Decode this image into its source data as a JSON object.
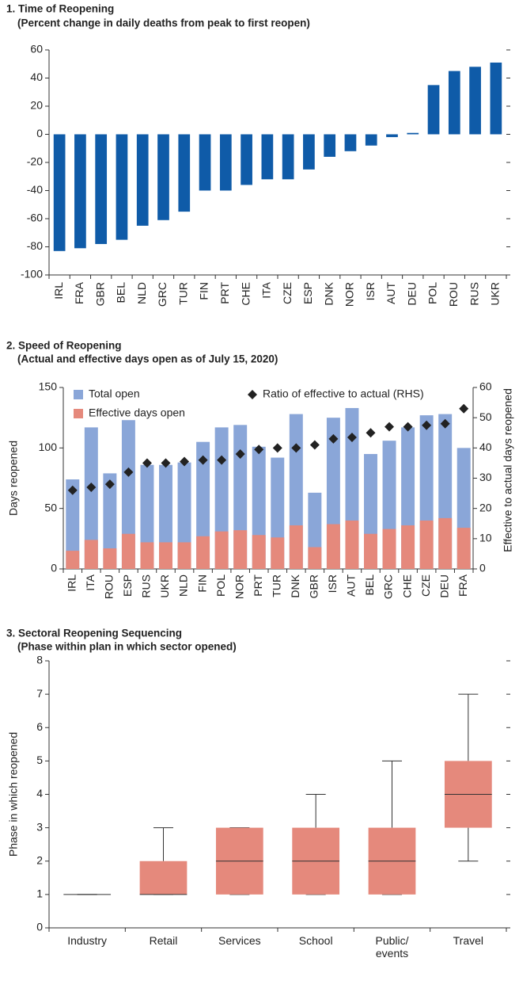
{
  "chart_data": [
    {
      "type": "bar",
      "title": "1. Time of Reopening",
      "subtitle": "(Percent change in daily deaths from peak to first reopen)",
      "categories": [
        "IRL",
        "FRA",
        "GBR",
        "BEL",
        "NLD",
        "GRC",
        "TUR",
        "FIN",
        "PRT",
        "CHE",
        "ITA",
        "CZE",
        "ESP",
        "DNK",
        "NOR",
        "ISR",
        "AUT",
        "DEU",
        "POL",
        "ROU",
        "RUS",
        "UKR"
      ],
      "values": [
        -83,
        -81,
        -78,
        -75,
        -65,
        -61,
        -55,
        -40,
        -40,
        -36,
        -32,
        -32,
        -25,
        -16,
        -12,
        -8,
        -2,
        1,
        35,
        45,
        48,
        51
      ],
      "color": "#0f5ba8",
      "ylim": [
        -100,
        60
      ],
      "yticks": [
        60,
        40,
        20,
        0,
        -20,
        -40,
        -60,
        -80,
        -100
      ],
      "grid": false
    },
    {
      "type": "bar",
      "title": "2. Speed of Reopening",
      "subtitle": "(Actual and effective days open as of July 15, 2020)",
      "y_label": "Days reopened",
      "y2_label": "Effective to actual days reopened",
      "bar_mode": "overlay",
      "categories": [
        "IRL",
        "ITA",
        "ROU",
        "ESP",
        "RUS",
        "UKR",
        "NLD",
        "FIN",
        "POL",
        "NOR",
        "PRT",
        "TUR",
        "DNK",
        "GBR",
        "ISR",
        "AUT",
        "BEL",
        "GRC",
        "CHE",
        "CZE",
        "DEU",
        "FRA"
      ],
      "series": [
        {
          "name": "Total open",
          "color": "#8aa6d8",
          "values": [
            74,
            117,
            79,
            123,
            86,
            86,
            88,
            105,
            117,
            119,
            101,
            92,
            128,
            63,
            125,
            133,
            95,
            106,
            117,
            127,
            128,
            100
          ]
        },
        {
          "name": "Effective days open",
          "color": "#e5897c",
          "values": [
            15,
            24,
            17,
            29,
            22,
            22,
            22,
            27,
            31,
            32,
            28,
            26,
            36,
            18,
            37,
            40,
            29,
            33,
            36,
            40,
            42,
            34
          ]
        },
        {
          "name": "Ratio of effective to actual (RHS)",
          "color": "#222222",
          "axis": "y2",
          "marker": "diamond",
          "values": [
            26,
            27,
            28,
            32,
            35,
            35,
            35.5,
            36,
            36,
            38,
            39.5,
            40,
            40,
            41,
            43,
            43.5,
            45,
            47,
            47,
            47.5,
            48,
            53
          ]
        }
      ],
      "ylim": [
        0,
        150
      ],
      "yticks": [
        0,
        50,
        100,
        150
      ],
      "y2lim": [
        0,
        60
      ],
      "y2ticks": [
        0,
        10,
        20,
        30,
        40,
        50,
        60
      ],
      "grid": false
    },
    {
      "type": "box",
      "title": "3. Sectoral Reopening Sequencing",
      "subtitle": "(Phase within plan in which sector opened)",
      "y_label": "Phase in which reopened",
      "categories": [
        "Industry",
        "Retail",
        "Services",
        "School",
        "Public/ events",
        "Travel"
      ],
      "color": "#e5897c",
      "min": [
        1,
        1,
        1,
        1,
        1,
        2
      ],
      "q1": [
        1,
        1,
        1,
        1,
        1,
        3
      ],
      "median": [
        1,
        1,
        2,
        2,
        2,
        4
      ],
      "q3": [
        1,
        2,
        3,
        3,
        3,
        5
      ],
      "max": [
        1,
        3,
        3,
        4,
        5,
        7
      ],
      "ylim": [
        0,
        8
      ],
      "yticks": [
        0,
        1,
        2,
        3,
        4,
        5,
        6,
        7,
        8
      ],
      "grid": false
    }
  ]
}
